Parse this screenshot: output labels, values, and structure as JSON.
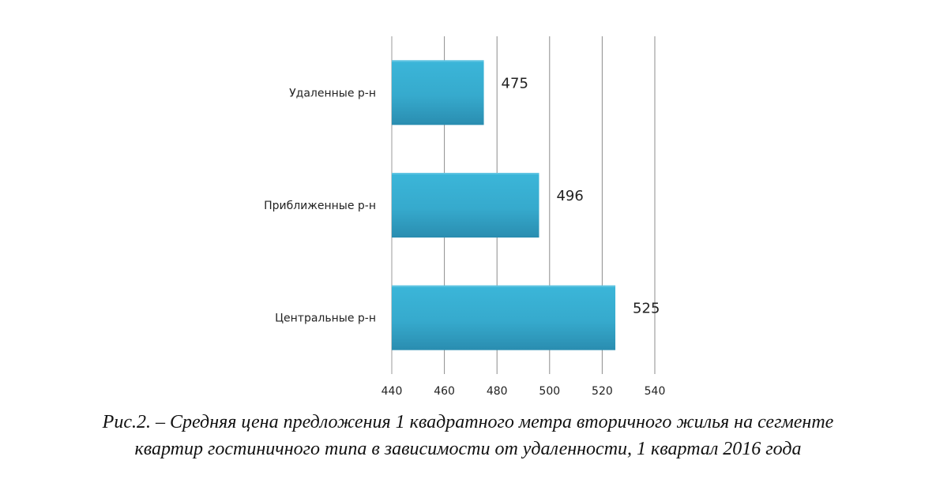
{
  "chart_data": {
    "type": "bar",
    "orientation": "horizontal",
    "categories": [
      "Удаленные р-н",
      "Приближенные р-н",
      "Центральные р-н"
    ],
    "values": [
      475,
      496,
      525
    ],
    "data_labels": [
      "475",
      "496",
      "525"
    ],
    "xlim": [
      440,
      540
    ],
    "x_ticks": [
      "440",
      "460",
      "480",
      "500",
      "520",
      "540"
    ],
    "grid": "vertical",
    "legend": "none",
    "bar_color_top": "#3bb6d9",
    "bar_color_bottom": "#2a8db0"
  },
  "caption": {
    "line1": "Рис.2. – Средняя цена предложения 1 квадратного метра вторичного жилья  на сегменте",
    "line2": "квартир гостиничного типа в зависимости от удаленности, 1 квартал 2016 года"
  }
}
